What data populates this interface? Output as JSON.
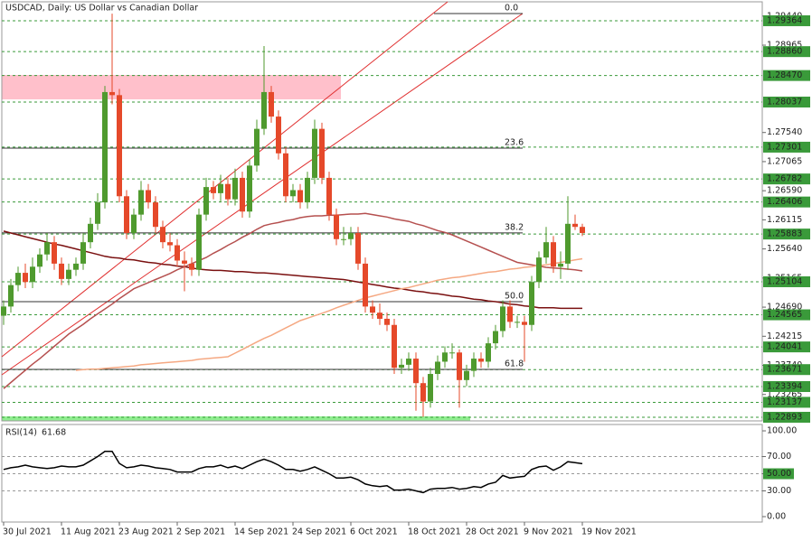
{
  "chart_data": [
    {
      "type": "candlestick",
      "title": "USDCAD, Daily:  US Dollar vs Canadian Dollar",
      "categories": [
        "30 Jul 2021",
        null,
        null,
        null,
        null,
        null,
        null,
        null,
        "11 Aug 2021",
        null,
        null,
        null,
        null,
        null,
        null,
        null,
        "23 Aug 2021",
        null,
        null,
        null,
        null,
        null,
        null,
        null,
        "2 Sep 2021",
        null,
        null,
        null,
        null,
        null,
        null,
        null,
        "14 Sep 2021",
        null,
        null,
        null,
        null,
        null,
        null,
        null,
        "24 Sep 2021",
        null,
        null,
        null,
        null,
        null,
        null,
        null,
        "6 Oct 2021",
        null,
        null,
        null,
        null,
        null,
        null,
        null,
        "18 Oct 2021",
        null,
        null,
        null,
        null,
        null,
        null,
        null,
        "28 Oct 2021",
        null,
        null,
        null,
        null,
        null,
        null,
        null,
        "9 Nov 2021",
        null,
        null,
        null,
        null,
        null,
        null,
        null,
        "19 Nov 2021"
      ],
      "open": [
        1.2455,
        1.247,
        1.2505,
        1.2525,
        1.251,
        1.2535,
        1.2555,
        1.2575,
        1.254,
        1.2515,
        1.253,
        1.254,
        1.2575,
        1.2605,
        1.264,
        1.282,
        1.2815,
        1.265,
        1.259,
        1.262,
        1.266,
        1.264,
        1.26,
        1.2575,
        1.257,
        1.2545,
        1.254,
        1.253,
        1.262,
        1.2665,
        1.2655,
        1.267,
        1.2645,
        1.268,
        1.2625,
        1.27,
        1.276,
        1.282,
        1.278,
        1.272,
        1.265,
        1.266,
        1.264,
        1.268,
        1.276,
        1.268,
        1.262,
        1.258,
        1.258,
        1.259,
        1.254,
        1.247,
        1.246,
        1.245,
        1.244,
        1.237,
        1.2375,
        1.2385,
        1.2345,
        1.2315,
        1.236,
        1.238,
        1.2395,
        1.2395,
        1.235,
        1.2365,
        1.2385,
        1.238,
        1.241,
        1.243,
        1.247,
        1.2445,
        1.2445,
        1.244,
        1.251,
        1.255,
        1.2575,
        1.2535,
        1.254,
        1.2605,
        1.26
      ],
      "high": [
        1.248,
        1.2515,
        1.2535,
        1.254,
        1.255,
        1.2565,
        1.259,
        1.2585,
        1.255,
        1.254,
        1.255,
        1.259,
        1.2615,
        1.2655,
        1.283,
        1.2948,
        1.2825,
        1.266,
        1.263,
        1.2675,
        1.267,
        1.265,
        1.261,
        1.259,
        1.258,
        1.256,
        1.255,
        1.263,
        1.268,
        1.2675,
        1.2685,
        1.268,
        1.2695,
        1.269,
        1.271,
        1.2775,
        1.2895,
        1.283,
        1.279,
        1.273,
        1.267,
        1.267,
        1.269,
        1.2775,
        1.277,
        1.269,
        1.263,
        1.26,
        1.26,
        1.26,
        1.255,
        1.248,
        1.2475,
        1.246,
        1.245,
        1.2385,
        1.2395,
        1.2395,
        1.2355,
        1.237,
        1.239,
        1.2405,
        1.241,
        1.24,
        1.2375,
        1.2395,
        1.2395,
        1.242,
        1.244,
        1.248,
        1.248,
        1.2455,
        1.2455,
        1.252,
        1.256,
        1.26,
        1.2585,
        1.256,
        1.265,
        1.262,
        1.2605
      ],
      "low": [
        1.244,
        1.246,
        1.2495,
        1.25,
        1.25,
        1.2525,
        1.2545,
        1.253,
        1.2505,
        1.2505,
        1.252,
        1.253,
        1.2565,
        1.2595,
        1.263,
        1.28,
        1.264,
        1.258,
        1.258,
        1.261,
        1.263,
        1.259,
        1.2565,
        1.256,
        1.2535,
        1.2495,
        1.252,
        1.252,
        1.261,
        1.2645,
        1.264,
        1.2635,
        1.2635,
        1.2615,
        1.2615,
        1.269,
        1.275,
        1.277,
        1.271,
        1.264,
        1.264,
        1.263,
        1.263,
        1.267,
        1.267,
        1.261,
        1.257,
        1.257,
        1.257,
        1.253,
        1.246,
        1.245,
        1.244,
        1.243,
        1.236,
        1.236,
        1.2365,
        1.23,
        1.229,
        1.2305,
        1.235,
        1.237,
        1.2385,
        1.2305,
        1.234,
        1.2355,
        1.237,
        1.237,
        1.24,
        1.242,
        1.2435,
        1.2435,
        1.238,
        1.243,
        1.25,
        1.254,
        1.2525,
        1.2515,
        1.253,
        1.2595,
        1.2585
      ],
      "close": [
        1.247,
        1.2505,
        1.2525,
        1.251,
        1.2535,
        1.2555,
        1.2575,
        1.254,
        1.2515,
        1.253,
        1.254,
        1.2575,
        1.2605,
        1.264,
        1.282,
        1.2815,
        1.265,
        1.259,
        1.262,
        1.266,
        1.264,
        1.26,
        1.2575,
        1.257,
        1.2545,
        1.254,
        1.253,
        1.262,
        1.2665,
        1.2655,
        1.267,
        1.2645,
        1.268,
        1.2625,
        1.27,
        1.276,
        1.282,
        1.278,
        1.272,
        1.265,
        1.266,
        1.264,
        1.268,
        1.276,
        1.268,
        1.262,
        1.258,
        1.258,
        1.259,
        1.254,
        1.247,
        1.246,
        1.245,
        1.244,
        1.237,
        1.2375,
        1.2385,
        1.2345,
        1.2315,
        1.236,
        1.238,
        1.2395,
        1.2395,
        1.235,
        1.2365,
        1.2385,
        1.238,
        1.241,
        1.243,
        1.247,
        1.2445,
        1.2445,
        1.244,
        1.251,
        1.255,
        1.2575,
        1.2535,
        1.254,
        1.2605,
        1.26,
        1.259
      ],
      "up_color": "#4f9a2e",
      "down_color": "#e5492a",
      "series": [
        {
          "color": "#7a1010",
          "values": [
            1.2593,
            1.259,
            1.2587,
            1.2584,
            1.2581,
            1.2578,
            1.2575,
            1.2572,
            1.257,
            1.2567,
            1.2564,
            1.2561,
            1.2558,
            1.2555,
            1.2552,
            1.255,
            1.2549,
            1.2547,
            1.2546,
            1.2544,
            1.2542,
            1.2541,
            1.2539,
            1.2538,
            1.2536,
            1.2535,
            1.2533,
            1.2531,
            1.253,
            1.2529,
            1.2529,
            1.2528,
            1.2527,
            1.2527,
            1.2526,
            1.2525,
            1.2525,
            1.2524,
            1.2523,
            1.2522,
            1.2521,
            1.252,
            1.2519,
            1.2518,
            1.2517,
            1.2516,
            1.2515,
            1.2514,
            1.2512,
            1.251,
            1.2508,
            1.2506,
            1.2504,
            1.2502,
            1.25,
            1.2499,
            1.2497,
            1.2495,
            1.2494,
            1.2492,
            1.2491,
            1.2489,
            1.2487,
            1.2486,
            1.2484,
            1.2482,
            1.2481,
            1.2479,
            1.2478,
            1.2476,
            1.2474,
            1.2473,
            1.2471,
            1.247,
            1.2468,
            1.2468,
            1.2468,
            1.2467,
            1.2467,
            1.2467,
            1.2467
          ]
        },
        {
          "color": "#b5504f",
          "values": [
            1.2336,
            1.2346,
            1.2356,
            1.2366,
            1.2376,
            1.2385,
            1.2395,
            1.2405,
            1.2415,
            1.2425,
            1.2433,
            1.2441,
            1.245,
            1.2458,
            1.2466,
            1.2474,
            1.2483,
            1.2491,
            1.2499,
            1.2504,
            1.2509,
            1.2514,
            1.2519,
            1.2524,
            1.253,
            1.2535,
            1.254,
            1.2545,
            1.255,
            1.2557,
            1.2563,
            1.257,
            1.2576,
            1.2583,
            1.2589,
            1.2596,
            1.2602,
            1.2605,
            1.2607,
            1.261,
            1.2612,
            1.2615,
            1.2617,
            1.2618,
            1.2618,
            1.2619,
            1.2619,
            1.262,
            1.2621,
            1.2621,
            1.2622,
            1.262,
            1.2618,
            1.2616,
            1.2613,
            1.2611,
            1.2609,
            1.2605,
            1.2602,
            1.2598,
            1.2594,
            1.2591,
            1.2587,
            1.2582,
            1.2577,
            1.2572,
            1.2567,
            1.2562,
            1.2557,
            1.2552,
            1.2547,
            1.2542,
            1.254,
            1.2538,
            1.2536,
            1.2534,
            1.2533,
            1.2532,
            1.2531,
            1.253,
            1.2528
          ]
        },
        {
          "color": "#f5a882",
          "values": [
            null,
            null,
            null,
            null,
            null,
            null,
            null,
            null,
            null,
            null,
            1.2366,
            1.2367,
            1.2368,
            1.2368,
            1.2369,
            1.237,
            1.2371,
            1.2372,
            1.2373,
            1.2375,
            1.2376,
            1.2377,
            1.2378,
            1.2379,
            1.238,
            1.2381,
            1.2382,
            1.2384,
            1.2385,
            1.2386,
            1.2387,
            1.2388,
            1.2394,
            1.24,
            1.2406,
            1.2412,
            1.2418,
            1.2423,
            1.2429,
            1.2435,
            1.2441,
            1.2447,
            1.2451,
            1.2455,
            1.2459,
            1.2463,
            1.2468,
            1.2472,
            1.2476,
            1.248,
            1.2484,
            1.2487,
            1.249,
            1.2493,
            1.2496,
            1.2499,
            1.2501,
            1.2504,
            1.2507,
            1.251,
            1.2513,
            1.2515,
            1.2517,
            1.2518,
            1.252,
            1.2522,
            1.2524,
            1.2526,
            1.2527,
            1.2529,
            1.2531,
            1.2532,
            1.2534,
            1.2535,
            1.2537,
            1.2538,
            1.254,
            1.2542,
            1.2544,
            1.2546,
            1.2548
          ]
        }
      ],
      "ylim": [
        1.22834,
        1.29673
      ],
      "yticks": [
        {
          "value": 1.2944,
          "label": "1.29440"
        },
        1.28965,
        {
          "value": 1.2754,
          "label": "1.27540"
        },
        1.27065,
        {
          "value": 1.2659,
          "label": "1.26590"
        },
        1.26115,
        {
          "value": 1.2564,
          "label": "1.25640"
        },
        1.25165,
        {
          "value": 1.2469,
          "label": "1.24690"
        },
        1.24215,
        {
          "value": 1.2374,
          "label": "1.23740"
        },
        1.23265
      ],
      "levels": [
        1.29364,
        {
          "value": 1.2886,
          "label": "1.28860"
        },
        {
          "value": 1.2847,
          "label": "1.28470"
        },
        1.28037,
        1.27301,
        1.26782,
        1.26406,
        1.25883,
        1.25104,
        1.24565,
        1.24041,
        1.23671,
        1.23394,
        1.23137,
        1.22893
      ],
      "level_color": "#3a9a3a",
      "fib_levels": {
        "labels": [
          "0.0",
          "23.6",
          "38.2",
          "50.0",
          "61.8"
        ],
        "prices": [
          1.29482,
          1.27286,
          1.25901,
          1.2478,
          1.23675
        ]
      }
    },
    {
      "type": "line",
      "title": "RSI(14)",
      "color": "#000000",
      "values": [
        55,
        57,
        58,
        60,
        58,
        57,
        56,
        57,
        59,
        58,
        58,
        60,
        65,
        70,
        76,
        76,
        62,
        57,
        58,
        60,
        59,
        57,
        56,
        55,
        52,
        52,
        52,
        56,
        58,
        58,
        60,
        57,
        59,
        56,
        60,
        64,
        67,
        64,
        60,
        55,
        55,
        53,
        55,
        58,
        54,
        50,
        45,
        45,
        46,
        43,
        38,
        36,
        35,
        36,
        31,
        31,
        32,
        30,
        28,
        32,
        33,
        33,
        34,
        32,
        33,
        35,
        34,
        38,
        40,
        48,
        45,
        46,
        47,
        55,
        58,
        59,
        54,
        58,
        64,
        63,
        61.68
      ],
      "ylim": [
        -6.3,
        107.4
      ],
      "yticks": [
        {
          "value": 100,
          "label": "100.00"
        },
        {
          "value": 70,
          "label": "70.00"
        },
        {
          "value": 50,
          "label": "50.00"
        },
        {
          "value": 30,
          "label": "30.00"
        },
        {
          "value": 0,
          "label": "0.00"
        }
      ],
      "levels": [
        70,
        50,
        30
      ],
      "highlighted_ticks": [
        2
      ]
    }
  ]
}
